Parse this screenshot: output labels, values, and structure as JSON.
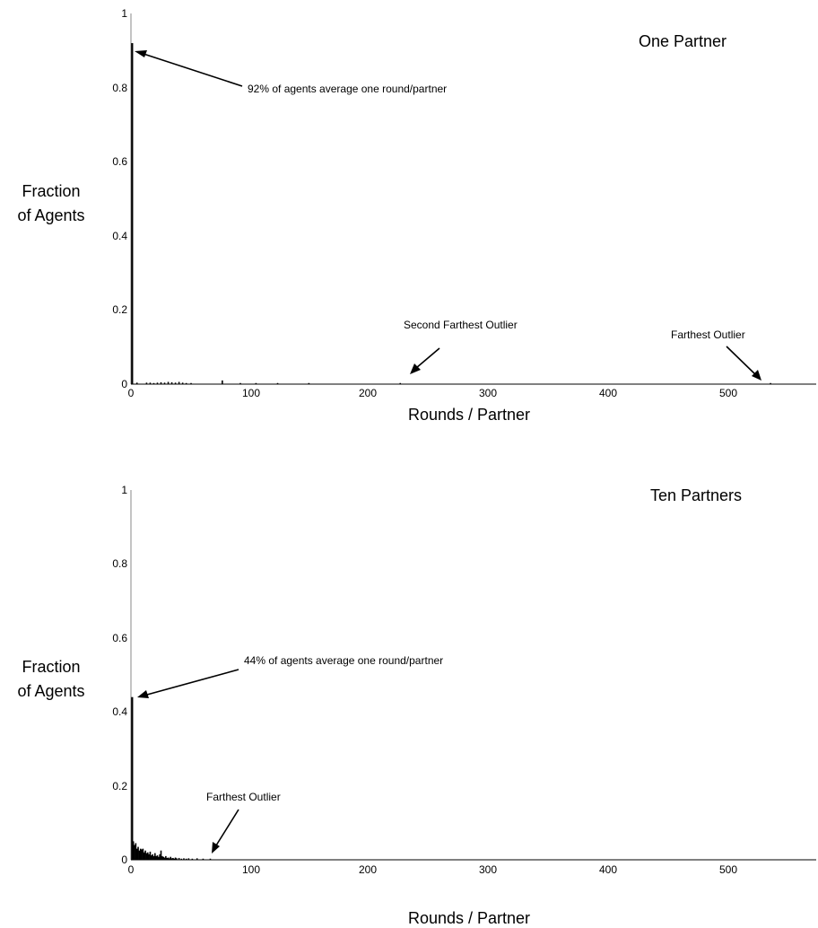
{
  "chart_data": [
    {
      "type": "bar",
      "title": "One Partner",
      "xlabel": "Rounds / Partner",
      "ylabel": [
        "Fraction",
        "of Agents"
      ],
      "xlim": [
        0,
        570
      ],
      "ylim": [
        0,
        1
      ],
      "xticks": [
        0,
        100,
        200,
        300,
        400,
        500
      ],
      "yticks": [
        0,
        0.2,
        0.4,
        0.6,
        0.8,
        1
      ],
      "yticklabels": [
        "0",
        "0.2",
        "0.4",
        "0.6",
        "0.8",
        "1"
      ],
      "grid": false,
      "x": [
        1,
        5,
        13,
        16,
        19,
        22,
        25,
        28,
        31,
        34,
        37,
        40,
        43,
        46,
        50,
        76,
        91,
        104,
        122,
        148,
        224,
        532
      ],
      "values": [
        0.92,
        0.004,
        0.004,
        0.004,
        0.003,
        0.004,
        0.005,
        0.004,
        0.006,
        0.005,
        0.004,
        0.006,
        0.004,
        0.003,
        0.003,
        0.01,
        0.003,
        0.003,
        0.003,
        0.003,
        0.003,
        0.003
      ],
      "annotations": [
        {
          "text": "92% of agents average one round/partner",
          "x": 1,
          "y": 0.92
        },
        {
          "text": "Second Farthest Outlier",
          "x": 230,
          "y": 0.003
        },
        {
          "text": "Farthest Outlier",
          "x": 530,
          "y": 0.003
        }
      ]
    },
    {
      "type": "bar",
      "title": "Ten Partners",
      "xlabel": "Rounds / Partner",
      "ylabel": [
        "Fraction",
        "of Agents"
      ],
      "xlim": [
        0,
        570
      ],
      "ylim": [
        0,
        1
      ],
      "xticks": [
        0,
        100,
        200,
        300,
        400,
        500
      ],
      "yticks": [
        0,
        0.2,
        0.4,
        0.6,
        0.8,
        1
      ],
      "yticklabels": [
        "0",
        "0.2",
        "0.4",
        "0.6",
        "0.8",
        "1"
      ],
      "grid": false,
      "x": [
        1,
        2,
        3,
        4,
        5,
        6,
        7,
        8,
        9,
        10,
        11,
        12,
        13,
        14,
        15,
        16,
        17,
        18,
        19,
        20,
        21,
        22,
        23,
        24,
        25,
        26,
        27,
        28,
        29,
        30,
        31,
        32,
        33,
        34,
        35,
        36,
        37,
        38,
        40,
        42,
        44,
        46,
        48,
        51,
        55,
        60,
        66
      ],
      "values": [
        0.44,
        0.05,
        0.04,
        0.045,
        0.03,
        0.035,
        0.025,
        0.03,
        0.028,
        0.03,
        0.02,
        0.025,
        0.018,
        0.02,
        0.015,
        0.022,
        0.012,
        0.015,
        0.01,
        0.018,
        0.01,
        0.012,
        0.008,
        0.015,
        0.025,
        0.01,
        0.008,
        0.006,
        0.01,
        0.005,
        0.006,
        0.004,
        0.008,
        0.004,
        0.005,
        0.003,
        0.006,
        0.004,
        0.005,
        0.003,
        0.004,
        0.003,
        0.004,
        0.003,
        0.004,
        0.003,
        0.003
      ],
      "annotations": [
        {
          "text": "44% of agents average one round/partner",
          "x": 1,
          "y": 0.44
        },
        {
          "text": "Farthest Outlier",
          "x": 66,
          "y": 0.003
        }
      ]
    }
  ]
}
